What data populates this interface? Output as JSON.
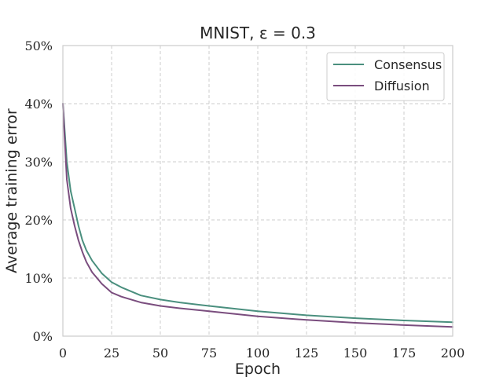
{
  "chart_data": {
    "type": "line",
    "title": "MNIST, ε = 0.3",
    "xlabel": "Epoch",
    "ylabel": "Average training error",
    "xlim": [
      0,
      200
    ],
    "ylim": [
      0,
      50
    ],
    "xticks": [
      0,
      25,
      50,
      75,
      100,
      125,
      150,
      175,
      200
    ],
    "xtick_labels": [
      "0",
      "25",
      "50",
      "75",
      "100",
      "125",
      "150",
      "175",
      "200"
    ],
    "yticks": [
      0,
      10,
      20,
      30,
      40,
      50
    ],
    "ytick_labels": [
      "0%",
      "10%",
      "20%",
      "30%",
      "40%",
      "50%"
    ],
    "grid": true,
    "legend_position": "top-right",
    "x": [
      0,
      2,
      4,
      6,
      8,
      10,
      12,
      15,
      20,
      25,
      30,
      40,
      50,
      60,
      75,
      100,
      125,
      150,
      175,
      200
    ],
    "series": [
      {
        "name": "Consensus",
        "color": "#4a8f7e",
        "values": [
          40,
          30,
          25,
          22,
          19,
          16.5,
          14.8,
          13,
          10.8,
          9.3,
          8.4,
          7,
          6.3,
          5.8,
          5.2,
          4.3,
          3.6,
          3.1,
          2.7,
          2.4
        ]
      },
      {
        "name": "Diffusion",
        "color": "#7a4d7e",
        "values": [
          40,
          27,
          22,
          19,
          16.5,
          14.5,
          12.8,
          11,
          9,
          7.5,
          6.8,
          5.8,
          5.2,
          4.8,
          4.3,
          3.4,
          2.8,
          2.3,
          1.9,
          1.6
        ]
      }
    ]
  }
}
